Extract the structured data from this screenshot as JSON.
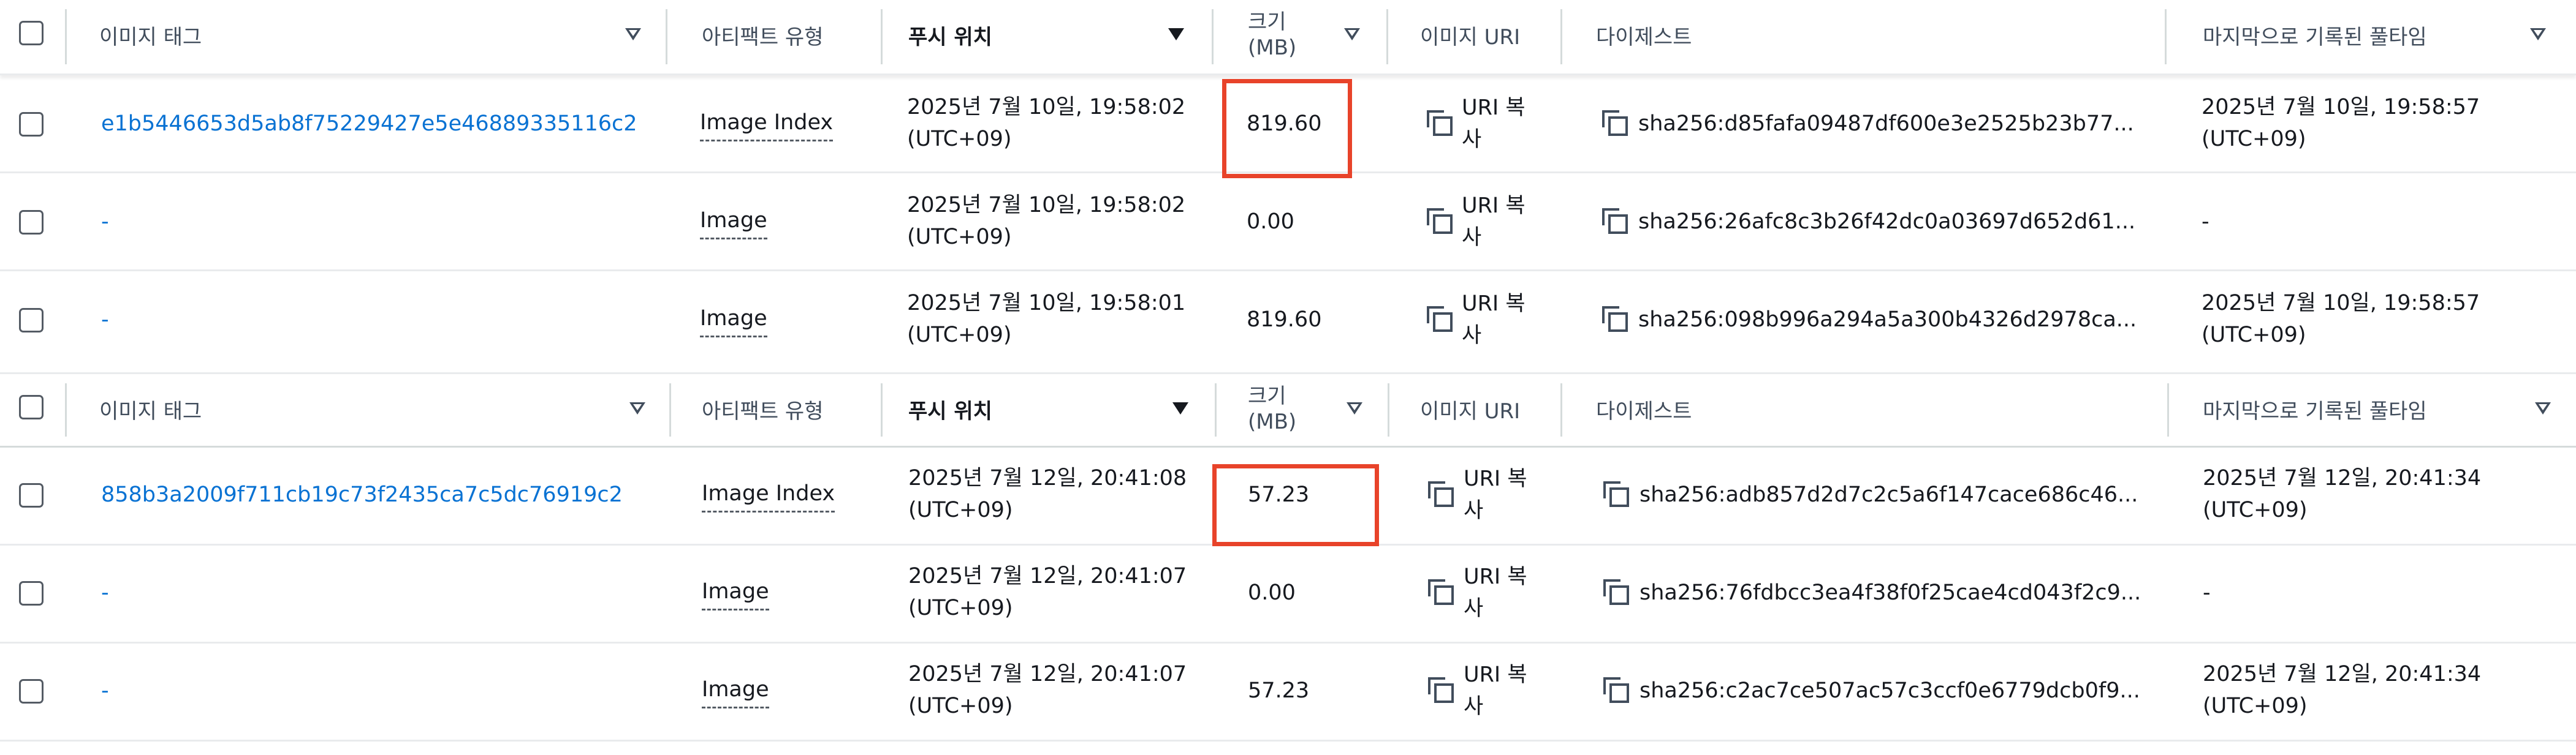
{
  "headers": {
    "image_tag": "이미지 태그",
    "artifact_type": "아티팩트 유형",
    "pushed_at": "푸시 위치",
    "size_line1": "크기",
    "size_line2": "(MB)",
    "image_uri": "이미지 URI",
    "digest": "다이제스트",
    "last_pulled": "마지막으로 기록된 풀타임"
  },
  "copy_uri_label_line1": "URI 복",
  "copy_uri_label_line2": "사",
  "groups": [
    {
      "rows": [
        {
          "tag": "e1b5446653d5ab8f75229427e5e46889335116c2",
          "type": "Image Index",
          "pushed_line1": "2025년 7월 10일, 19:58:02",
          "pushed_line2": "(UTC+09)",
          "size": "819.60",
          "digest": "sha256:d85fafa09487df600e3e2525b23b77...",
          "pulled_line1": "2025년 7월 10일, 19:58:57",
          "pulled_line2": "(UTC+09)"
        },
        {
          "tag": "-",
          "type": "Image",
          "pushed_line1": "2025년 7월 10일, 19:58:02",
          "pushed_line2": "(UTC+09)",
          "size": "0.00",
          "digest": "sha256:26afc8c3b26f42dc0a03697d652d61...",
          "pulled_line1": "-",
          "pulled_line2": ""
        },
        {
          "tag": "-",
          "type": "Image",
          "pushed_line1": "2025년 7월 10일, 19:58:01",
          "pushed_line2": "(UTC+09)",
          "size": "819.60",
          "digest": "sha256:098b996a294a5a300b4326d2978ca...",
          "pulled_line1": "2025년 7월 10일, 19:58:57",
          "pulled_line2": "(UTC+09)"
        }
      ]
    },
    {
      "rows": [
        {
          "tag": "858b3a2009f711cb19c73f2435ca7c5dc76919c2",
          "type": "Image Index",
          "pushed_line1": "2025년 7월 12일, 20:41:08",
          "pushed_line2": "(UTC+09)",
          "size": "57.23",
          "digest": "sha256:adb857d2d7c2c5a6f147cace686c46...",
          "pulled_line1": "2025년 7월 12일, 20:41:34",
          "pulled_line2": "(UTC+09)"
        },
        {
          "tag": "-",
          "type": "Image",
          "pushed_line1": "2025년 7월 12일, 20:41:07",
          "pushed_line2": "(UTC+09)",
          "size": "0.00",
          "digest": "sha256:76fdbcc3ea4f38f0f25cae4cd043f2c9...",
          "pulled_line1": "-",
          "pulled_line2": ""
        },
        {
          "tag": "-",
          "type": "Image",
          "pushed_line1": "2025년 7월 12일, 20:41:07",
          "pushed_line2": "(UTC+09)",
          "size": "57.23",
          "digest": "sha256:c2ac7ce507ac57c3ccf0e6779dcb0f9...",
          "pulled_line1": "2025년 7월 12일, 20:41:34",
          "pulled_line2": "(UTC+09)"
        }
      ]
    }
  ],
  "colors": {
    "link": "#0972d3",
    "highlight": "#e8432a",
    "text": "#16191f"
  }
}
